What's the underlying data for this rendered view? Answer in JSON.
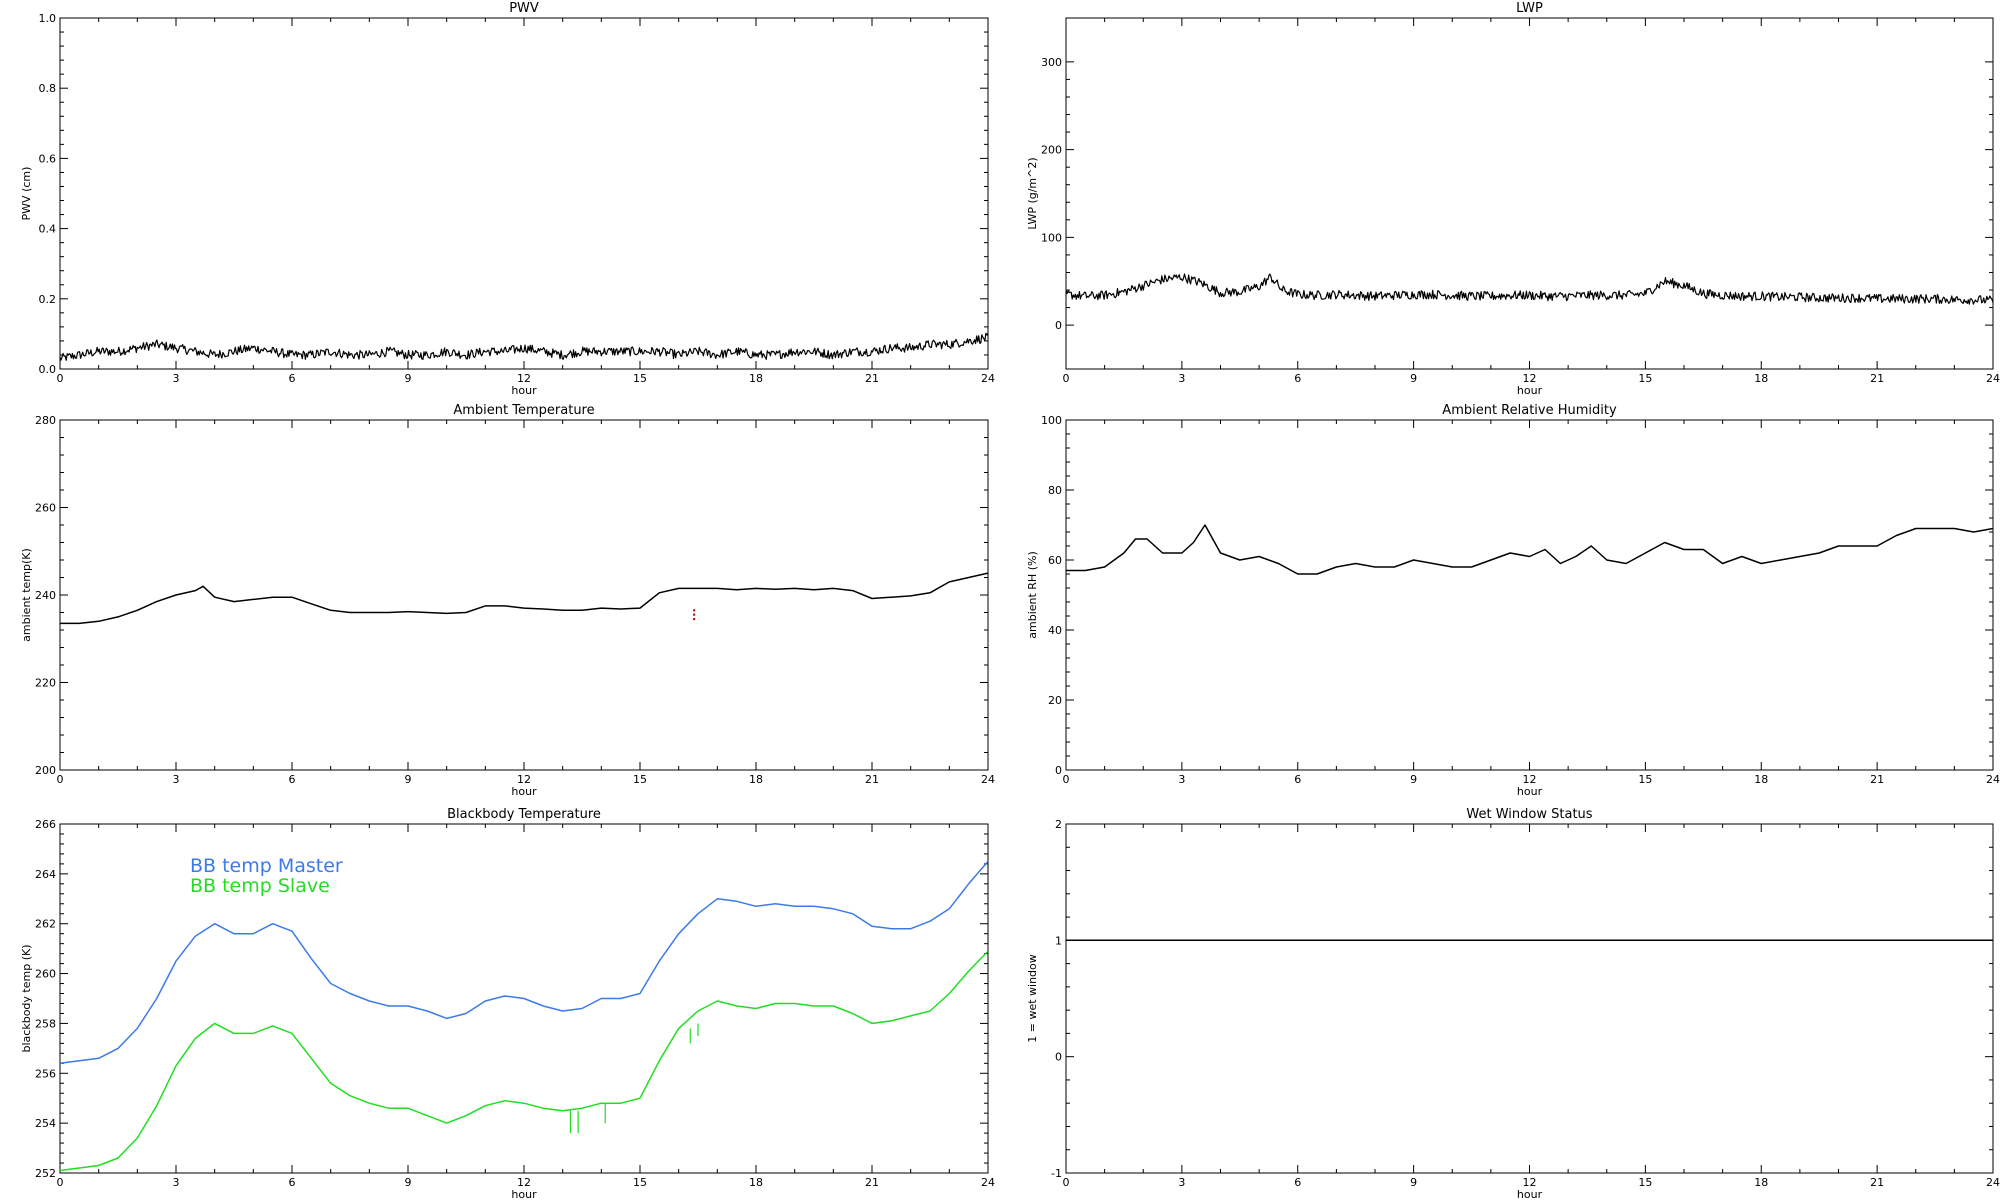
{
  "colors": {
    "axis": "#000000",
    "series_default": "#000000",
    "bb_master": "#3b7be8",
    "bb_slave": "#22dd22",
    "marker_red": "#cc0000"
  },
  "chart_data": [
    {
      "id": "pwv",
      "type": "line",
      "title": "PWV",
      "xlabel": "hour",
      "ylabel": "PWV (cm)",
      "xlim": [
        0,
        24
      ],
      "ylim": [
        0,
        1
      ],
      "xticks": [
        0,
        3,
        6,
        9,
        12,
        15,
        18,
        21,
        24
      ],
      "yticks": [
        0,
        0.2,
        0.4,
        0.6,
        0.8,
        1.0
      ],
      "ytick_labels": [
        "0.0",
        "0.2",
        "0.4",
        "0.6",
        "0.8",
        "1.0"
      ],
      "noisy": true,
      "series": [
        {
          "color": "#000000",
          "x": [
            0,
            0.5,
            1,
            1.5,
            2,
            2.5,
            3,
            3.5,
            4,
            4.5,
            5,
            5.5,
            6,
            6.5,
            7,
            7.5,
            8,
            8.5,
            9,
            9.5,
            10,
            10.5,
            11,
            11.5,
            12,
            12.5,
            13,
            13.5,
            14,
            14.5,
            15,
            15.5,
            16,
            16.5,
            17,
            17.5,
            18,
            18.5,
            19,
            19.5,
            20,
            20.5,
            21,
            21.5,
            22,
            22.5,
            23,
            23.5,
            24
          ],
          "y": [
            0.03,
            0.04,
            0.05,
            0.05,
            0.06,
            0.07,
            0.06,
            0.05,
            0.04,
            0.05,
            0.06,
            0.05,
            0.04,
            0.04,
            0.05,
            0.04,
            0.04,
            0.05,
            0.04,
            0.04,
            0.05,
            0.04,
            0.05,
            0.05,
            0.06,
            0.05,
            0.04,
            0.05,
            0.05,
            0.05,
            0.05,
            0.05,
            0.04,
            0.05,
            0.04,
            0.05,
            0.04,
            0.04,
            0.05,
            0.05,
            0.04,
            0.05,
            0.05,
            0.06,
            0.06,
            0.07,
            0.07,
            0.08,
            0.09
          ]
        }
      ]
    },
    {
      "id": "lwp",
      "type": "line",
      "title": "LWP",
      "xlabel": "hour",
      "ylabel": "LWP (g/m^2)",
      "xlim": [
        0,
        24
      ],
      "ylim": [
        -50,
        350
      ],
      "xticks": [
        0,
        3,
        6,
        9,
        12,
        15,
        18,
        21,
        24
      ],
      "yticks": [
        0,
        100,
        200,
        300
      ],
      "ytick_labels": [
        "0",
        "100",
        "200",
        "300"
      ],
      "noisy": true,
      "series": [
        {
          "color": "#000000",
          "x": [
            0,
            0.5,
            1,
            1.5,
            2,
            2.5,
            3,
            3.5,
            4,
            4.5,
            5,
            5.3,
            5.6,
            6,
            6.5,
            7,
            7.5,
            8,
            8.5,
            9,
            9.5,
            10,
            10.5,
            11,
            11.5,
            12,
            12.5,
            13,
            13.5,
            14,
            14.5,
            15,
            15.5,
            16,
            16.5,
            17,
            17.5,
            18,
            18.5,
            19,
            19.5,
            20,
            20.5,
            21,
            21.5,
            22,
            22.5,
            23,
            23.5,
            24
          ],
          "y": [
            35,
            33,
            34,
            38,
            45,
            52,
            55,
            48,
            37,
            38,
            44,
            55,
            40,
            35,
            34,
            35,
            34,
            33,
            34,
            35,
            35,
            34,
            33,
            33,
            34,
            34,
            33,
            33,
            34,
            34,
            34,
            36,
            50,
            45,
            36,
            34,
            33,
            33,
            32,
            32,
            31,
            31,
            31,
            30,
            30,
            30,
            30,
            29,
            29,
            28
          ]
        }
      ]
    },
    {
      "id": "ambient-temp",
      "type": "line",
      "title": "Ambient Temperature",
      "xlabel": "hour",
      "ylabel": "ambient temp(K)",
      "xlim": [
        0,
        24
      ],
      "ylim": [
        200,
        280
      ],
      "xticks": [
        0,
        3,
        6,
        9,
        12,
        15,
        18,
        21,
        24
      ],
      "yticks": [
        200,
        220,
        240,
        260,
        280
      ],
      "ytick_labels": [
        "200",
        "220",
        "240",
        "260",
        "280"
      ],
      "noisy": false,
      "series": [
        {
          "color": "#000000",
          "x": [
            0,
            0.5,
            1,
            1.5,
            2,
            2.5,
            3,
            3.5,
            3.7,
            4,
            4.5,
            5,
            5.5,
            6,
            6.5,
            7,
            7.5,
            8,
            8.5,
            9,
            9.5,
            10,
            10.5,
            11,
            11.5,
            12,
            12.5,
            13,
            13.5,
            14,
            14.5,
            15,
            15.5,
            16,
            16.5,
            17,
            17.5,
            18,
            18.5,
            19,
            19.5,
            20,
            20.5,
            21,
            21.5,
            22,
            22.5,
            23,
            23.5,
            24
          ],
          "y": [
            233.5,
            233.5,
            234,
            235,
            236.5,
            238.5,
            240,
            241,
            242,
            239.5,
            238.5,
            239,
            239.5,
            239.5,
            238,
            236.5,
            236,
            236,
            236,
            236.2,
            236,
            235.8,
            236,
            237.5,
            237.5,
            237,
            236.8,
            236.5,
            236.5,
            237,
            236.8,
            237,
            240.5,
            241.5,
            241.5,
            241.5,
            241.2,
            241.5,
            241.3,
            241.5,
            241.2,
            241.5,
            241,
            239.2,
            239.5,
            239.8,
            240.5,
            243,
            244,
            245
          ]
        }
      ],
      "markers": [
        {
          "x": 16.4,
          "y": 236.5
        },
        {
          "x": 16.4,
          "y": 235.5
        },
        {
          "x": 16.4,
          "y": 234.5
        }
      ]
    },
    {
      "id": "ambient-rh",
      "type": "line",
      "title": "Ambient Relative Humidity",
      "xlabel": "hour",
      "ylabel": "ambient RH (%)",
      "xlim": [
        0,
        24
      ],
      "ylim": [
        0,
        100
      ],
      "xticks": [
        0,
        3,
        6,
        9,
        12,
        15,
        18,
        21,
        24
      ],
      "yticks": [
        0,
        20,
        40,
        60,
        80,
        100
      ],
      "ytick_labels": [
        "0",
        "20",
        "40",
        "60",
        "80",
        "100"
      ],
      "noisy": false,
      "series": [
        {
          "color": "#000000",
          "x": [
            0,
            0.5,
            1,
            1.5,
            1.8,
            2.1,
            2.5,
            3,
            3.3,
            3.6,
            4,
            4.5,
            5,
            5.5,
            6,
            6.5,
            7,
            7.5,
            8,
            8.5,
            9,
            9.5,
            10,
            10.5,
            11,
            11.5,
            12,
            12.4,
            12.8,
            13.2,
            13.6,
            14,
            14.5,
            15,
            15.5,
            16,
            16.5,
            17,
            17.5,
            18,
            18.5,
            19,
            19.5,
            20,
            20.5,
            21,
            21.5,
            22,
            22.5,
            23,
            23.5,
            24
          ],
          "y": [
            57,
            57,
            58,
            62,
            66,
            66,
            62,
            62,
            65,
            70,
            62,
            60,
            61,
            59,
            56,
            56,
            58,
            59,
            58,
            58,
            60,
            59,
            58,
            58,
            60,
            62,
            61,
            63,
            59,
            61,
            64,
            60,
            59,
            62,
            65,
            63,
            63,
            59,
            61,
            59,
            60,
            61,
            62,
            64,
            64,
            64,
            67,
            69,
            69,
            69,
            68,
            69
          ]
        }
      ]
    },
    {
      "id": "blackbody-temp",
      "type": "line",
      "title": "Blackbody Temperature",
      "xlabel": "hour",
      "ylabel": "blackbody temp (K)",
      "xlim": [
        0,
        24
      ],
      "ylim": [
        252,
        266
      ],
      "xticks": [
        0,
        3,
        6,
        9,
        12,
        15,
        18,
        21,
        24
      ],
      "yticks": [
        252,
        254,
        256,
        258,
        260,
        262,
        264,
        266
      ],
      "ytick_labels": [
        "252",
        "254",
        "256",
        "258",
        "260",
        "262",
        "264",
        "266"
      ],
      "noisy": false,
      "legend": [
        {
          "label": "BB temp Master",
          "color": "#3b7be8"
        },
        {
          "label": "BB temp Slave",
          "color": "#22dd22"
        }
      ],
      "series": [
        {
          "name": "BB temp Master",
          "color": "#3b7be8",
          "x": [
            0,
            0.5,
            1,
            1.5,
            2,
            2.5,
            3,
            3.5,
            4,
            4.5,
            5,
            5.5,
            6,
            6.5,
            7,
            7.5,
            8,
            8.5,
            9,
            9.5,
            10,
            10.5,
            11,
            11.5,
            12,
            12.5,
            13,
            13.5,
            14,
            14.5,
            15,
            15.5,
            16,
            16.5,
            17,
            17.5,
            18,
            18.5,
            19,
            19.5,
            20,
            20.5,
            21,
            21.5,
            22,
            22.5,
            23,
            23.5,
            24
          ],
          "y": [
            256.4,
            256.5,
            256.6,
            257,
            257.8,
            259,
            260.5,
            261.5,
            262,
            261.6,
            261.6,
            262,
            261.7,
            260.6,
            259.6,
            259.2,
            258.9,
            258.7,
            258.7,
            258.5,
            258.2,
            258.4,
            258.9,
            259.1,
            259,
            258.7,
            258.5,
            258.6,
            259,
            259,
            259.2,
            260.5,
            261.6,
            262.4,
            263,
            262.9,
            262.7,
            262.8,
            262.7,
            262.7,
            262.6,
            262.4,
            261.9,
            261.8,
            261.8,
            262.1,
            262.6,
            263.6,
            264.5
          ]
        },
        {
          "name": "BB temp Slave",
          "color": "#22dd22",
          "x": [
            0,
            0.5,
            1,
            1.5,
            2,
            2.5,
            3,
            3.5,
            4,
            4.5,
            5,
            5.5,
            6,
            6.5,
            7,
            7.5,
            8,
            8.5,
            9,
            9.5,
            10,
            10.5,
            11,
            11.5,
            12,
            12.5,
            13,
            13.5,
            14,
            14.5,
            15,
            15.5,
            16,
            16.5,
            17,
            17.5,
            18,
            18.5,
            19,
            19.5,
            20,
            20.5,
            21,
            21.5,
            22,
            22.5,
            23,
            23.5,
            24
          ],
          "y": [
            252.1,
            252.2,
            252.3,
            252.6,
            253.4,
            254.7,
            256.3,
            257.4,
            258,
            257.6,
            257.6,
            257.9,
            257.6,
            256.6,
            255.6,
            255.1,
            254.8,
            254.6,
            254.6,
            254.3,
            254,
            254.3,
            254.7,
            254.9,
            254.8,
            254.6,
            254.5,
            254.6,
            254.8,
            254.8,
            255,
            256.5,
            257.8,
            258.5,
            258.9,
            258.7,
            258.6,
            258.8,
            258.8,
            258.7,
            258.7,
            258.4,
            258,
            258.1,
            258.3,
            258.5,
            259.2,
            260.1,
            260.9
          ]
        }
      ],
      "spikes": [
        {
          "x": 13.2,
          "y0": 254.5,
          "y1": 253.6
        },
        {
          "x": 13.4,
          "y0": 254.5,
          "y1": 253.6
        },
        {
          "x": 14.1,
          "y0": 254.8,
          "y1": 254.0
        },
        {
          "x": 16.3,
          "y0": 257.8,
          "y1": 257.2
        },
        {
          "x": 16.5,
          "y0": 258.0,
          "y1": 257.5
        }
      ]
    },
    {
      "id": "wet-window",
      "type": "line",
      "title": "Wet Window Status",
      "xlabel": "hour",
      "ylabel": "1 = wet window",
      "xlim": [
        0,
        24
      ],
      "ylim": [
        -1,
        2
      ],
      "xticks": [
        0,
        3,
        6,
        9,
        12,
        15,
        18,
        21,
        24
      ],
      "yticks": [
        -1,
        0,
        1,
        2
      ],
      "ytick_labels": [
        "-1",
        "0",
        "1",
        "2"
      ],
      "noisy": false,
      "series": [
        {
          "color": "#000000",
          "x": [
            0,
            24
          ],
          "y": [
            1,
            1
          ]
        }
      ]
    }
  ]
}
